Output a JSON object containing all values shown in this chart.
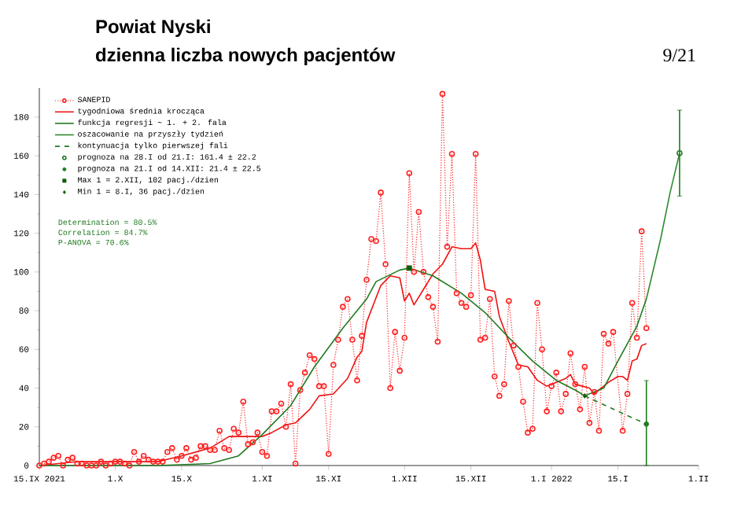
{
  "chart_data": {
    "type": "line",
    "title": "Powiat Nyski",
    "subtitle": "dzienna liczba nowych pacjentów",
    "xlim": [
      "2021-09-15",
      "2022-02-01"
    ],
    "xticks": [
      {
        "value": "2021-09-15",
        "label": "15.IX 2021"
      },
      {
        "value": "2021-10-01",
        "label": "1.X"
      },
      {
        "value": "2021-10-15",
        "label": "15.X"
      },
      {
        "value": "2021-11-01",
        "label": "1.XI"
      },
      {
        "value": "2021-11-15",
        "label": "15.XI"
      },
      {
        "value": "2021-12-01",
        "label": "1.XII"
      },
      {
        "value": "2021-12-15",
        "label": "15.XII"
      },
      {
        "value": "2022-01-01",
        "label": "1.I 2022"
      },
      {
        "value": "2022-01-15",
        "label": "15.I"
      },
      {
        "value": "2022-02-01",
        "label": "1.II"
      }
    ],
    "ylim": [
      0,
      195
    ],
    "yticks": [
      0,
      20,
      40,
      60,
      80,
      100,
      120,
      140,
      160,
      180
    ],
    "legend": "top left",
    "series": [
      {
        "name": "SANEPID",
        "color": "#ff2020",
        "marker": "circle",
        "line_style": "dotted",
        "x": [
          "2021-09-15",
          "2021-09-16",
          "2021-09-17",
          "2021-09-18",
          "2021-09-19",
          "2021-09-20",
          "2021-09-21",
          "2021-09-22",
          "2021-09-23",
          "2021-09-24",
          "2021-09-25",
          "2021-09-26",
          "2021-09-27",
          "2021-09-28",
          "2021-09-29",
          "2021-09-30",
          "2021-10-01",
          "2021-10-02",
          "2021-10-03",
          "2021-10-04",
          "2021-10-05",
          "2021-10-06",
          "2021-10-07",
          "2021-10-08",
          "2021-10-09",
          "2021-10-10",
          "2021-10-11",
          "2021-10-12",
          "2021-10-13",
          "2021-10-14",
          "2021-10-15",
          "2021-10-16",
          "2021-10-17",
          "2021-10-18",
          "2021-10-19",
          "2021-10-20",
          "2021-10-21",
          "2021-10-22",
          "2021-10-23",
          "2021-10-24",
          "2021-10-25",
          "2021-10-26",
          "2021-10-27",
          "2021-10-28",
          "2021-10-29",
          "2021-10-30",
          "2021-10-31",
          "2021-11-01",
          "2021-11-02",
          "2021-11-03",
          "2021-11-04",
          "2021-11-05",
          "2021-11-06",
          "2021-11-07",
          "2021-11-08",
          "2021-11-09",
          "2021-11-10",
          "2021-11-11",
          "2021-11-12",
          "2021-11-13",
          "2021-11-14",
          "2021-11-15",
          "2021-11-16",
          "2021-11-17",
          "2021-11-18",
          "2021-11-19",
          "2021-11-20",
          "2021-11-21",
          "2021-11-22",
          "2021-11-23",
          "2021-11-24",
          "2021-11-25",
          "2021-11-26",
          "2021-11-27",
          "2021-11-28",
          "2021-11-29",
          "2021-11-30",
          "2021-12-01",
          "2021-12-02",
          "2021-12-03",
          "2021-12-04",
          "2021-12-05",
          "2021-12-06",
          "2021-12-07",
          "2021-12-08",
          "2021-12-09",
          "2021-12-10",
          "2021-12-11",
          "2021-12-12",
          "2021-12-13",
          "2021-12-14",
          "2021-12-15",
          "2021-12-16",
          "2021-12-17",
          "2021-12-18",
          "2021-12-19",
          "2021-12-20",
          "2021-12-21",
          "2021-12-22",
          "2021-12-23",
          "2021-12-24",
          "2021-12-25",
          "2021-12-26",
          "2021-12-27",
          "2021-12-28",
          "2021-12-29",
          "2021-12-30",
          "2021-12-31",
          "2022-01-01",
          "2022-01-02",
          "2022-01-03",
          "2022-01-04",
          "2022-01-05",
          "2022-01-06",
          "2022-01-07",
          "2022-01-08",
          "2022-01-09",
          "2022-01-10",
          "2022-01-11",
          "2022-01-12",
          "2022-01-13",
          "2022-01-14",
          "2022-01-15",
          "2022-01-16",
          "2022-01-17",
          "2022-01-18",
          "2022-01-19",
          "2022-01-20",
          "2022-01-21"
        ],
        "values": [
          0,
          1,
          2,
          4,
          5,
          0,
          3,
          4,
          1,
          1,
          0,
          0,
          0,
          2,
          0,
          1,
          2,
          2,
          1,
          0,
          7,
          2,
          5,
          3,
          2,
          2,
          2,
          7,
          9,
          3,
          5,
          9,
          3,
          4,
          10,
          10,
          8,
          8,
          18,
          9,
          8,
          19,
          17,
          33,
          11,
          12,
          17,
          7,
          5,
          28,
          28,
          32,
          20,
          42,
          1,
          39,
          48,
          57,
          55,
          41,
          41,
          6,
          52,
          65,
          82,
          86,
          65,
          44,
          67,
          96,
          117,
          116,
          141,
          104,
          40,
          69,
          49,
          66,
          151,
          100,
          131,
          100,
          87,
          82,
          64,
          192,
          113,
          161,
          89,
          84,
          82,
          88,
          161,
          65,
          66,
          86,
          46,
          36,
          42,
          85,
          62,
          51,
          33,
          17,
          19,
          84,
          60,
          28,
          41,
          48,
          28,
          37,
          58,
          42,
          29,
          51,
          22,
          38,
          18,
          68,
          63,
          69,
          null,
          18,
          37,
          84,
          66,
          121,
          71
        ]
      },
      {
        "name": "tygodniowa średnia krocząca",
        "color": "#ee1111",
        "marker": "none",
        "line_style": "solid",
        "x": [
          "2021-09-15",
          "2021-09-23",
          "2021-10-04",
          "2021-10-10",
          "2021-10-15",
          "2021-10-21",
          "2021-10-25",
          "2021-11-01",
          "2021-11-03",
          "2021-11-06",
          "2021-11-08",
          "2021-11-11",
          "2021-11-13",
          "2021-11-16",
          "2021-11-19",
          "2021-11-21",
          "2021-11-22",
          "2021-11-23",
          "2021-11-26",
          "2021-11-28",
          "2021-11-30",
          "2021-12-01",
          "2021-12-02",
          "2021-12-03",
          "2021-12-05",
          "2021-12-07",
          "2021-12-09",
          "2021-12-11",
          "2021-12-13",
          "2021-12-15",
          "2021-12-16",
          "2021-12-17",
          "2021-12-18",
          "2021-12-20",
          "2021-12-21",
          "2021-12-23",
          "2021-12-25",
          "2021-12-27",
          "2021-12-29",
          "2021-12-31",
          "2022-01-02",
          "2022-01-04",
          "2022-01-05",
          "2022-01-06",
          "2022-01-09",
          "2022-01-10",
          "2022-01-11",
          "2022-01-13",
          "2022-01-15",
          "2022-01-16",
          "2022-01-17",
          "2022-01-18",
          "2022-01-19",
          "2022-01-20",
          "2022-01-21"
        ],
        "values": [
          0,
          2,
          2,
          2,
          5,
          9,
          15,
          15,
          17,
          21,
          22,
          29,
          36,
          37,
          45,
          56,
          59,
          74,
          93,
          98,
          97,
          85,
          89,
          83,
          91,
          99,
          104,
          113,
          112,
          112,
          115,
          106,
          91,
          90,
          77,
          64,
          52,
          51,
          44,
          41,
          43,
          45,
          47,
          42,
          40,
          37,
          39,
          43,
          46,
          46,
          44,
          54,
          55,
          62,
          63
        ]
      },
      {
        "name": "funkcja regresji ~ 1. + 2. fala",
        "color": "#1f7a1f",
        "marker": "none",
        "line_style": "solid",
        "x": [
          "2021-09-15",
          "2021-10-10",
          "2021-10-21",
          "2021-10-27",
          "2021-11-01",
          "2021-11-07",
          "2021-11-12",
          "2021-11-18",
          "2021-11-23",
          "2021-11-25",
          "2021-11-30",
          "2021-12-02",
          "2021-12-07",
          "2021-12-13",
          "2021-12-18",
          "2021-12-23",
          "2021-12-28",
          "2022-01-02",
          "2022-01-06",
          "2022-01-08",
          "2022-01-12",
          "2022-01-15",
          "2022-01-19",
          "2022-01-21"
        ],
        "values": [
          0,
          0,
          1,
          5,
          16,
          31,
          51,
          71,
          86,
          95,
          101,
          102,
          98,
          89,
          79,
          66,
          54,
          44,
          39,
          36,
          40,
          54,
          72,
          86
        ]
      },
      {
        "name": "oszacowanie na przyszły tydzień",
        "color": "#2e8b2e",
        "marker": "none",
        "line_style": "solid",
        "x": [
          "2022-01-21",
          "2022-01-24",
          "2022-01-26",
          "2022-01-28"
        ],
        "values": [
          86,
          117,
          141,
          161.4
        ]
      },
      {
        "name": "kontynuacja tylko pierwszej fali",
        "color": "#1f7a1f",
        "marker": "none",
        "line_style": "dashed",
        "x": [
          "2022-01-08",
          "2022-01-15",
          "2022-01-21"
        ],
        "values": [
          36,
          28,
          21.4
        ]
      },
      {
        "name": "prognoza na 28.I od 21.I: 161.4 ± 22.2",
        "type": "scatter",
        "color": "#1f7a1f",
        "marker": "circle",
        "x": [
          "2022-01-28"
        ],
        "values": [
          161.4
        ],
        "errors": [
          [
            139.2,
            183.6
          ]
        ]
      },
      {
        "name": "prognoza na 21.I od 14.XII: 21.4 ± 22.5",
        "type": "scatter",
        "color": "#1f7a1f",
        "marker": "dot",
        "x": [
          "2022-01-21"
        ],
        "values": [
          21.4
        ],
        "errors": [
          [
            0,
            43.9
          ]
        ]
      },
      {
        "name": "Max 1 = 2.XII, 102 pacj./dzien",
        "type": "scatter",
        "color": "#0b5e0b",
        "marker": "square",
        "x": [
          "2021-12-02"
        ],
        "values": [
          102
        ]
      },
      {
        "name": "Min 1 = 8.I, 36 pacj./dzien",
        "type": "scatter",
        "color": "#0b5e0b",
        "marker": "diamond",
        "x": [
          "2022-01-08"
        ],
        "values": [
          36
        ]
      }
    ],
    "annotations": [
      "Determination = 80.5%",
      "Correlation = 84.7%",
      "P-ANOVA = 70.6%",
      "9/21"
    ]
  }
}
